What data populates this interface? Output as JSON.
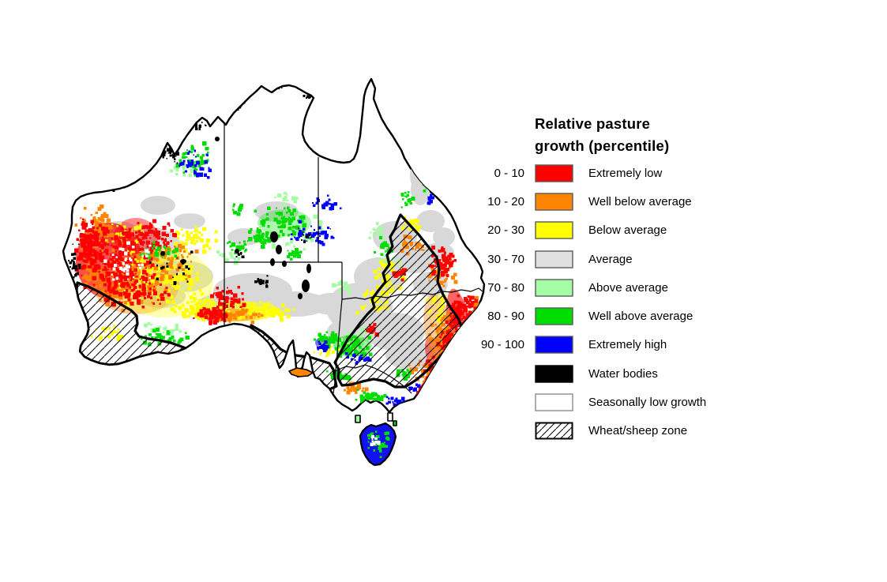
{
  "figure": {
    "background": "#ffffff"
  },
  "legend": {
    "title": "Relative pasture growth (percentile)",
    "items": [
      {
        "range": "0 - 10",
        "label": "Extremely low",
        "color": "#ff0000"
      },
      {
        "range": "10 - 20",
        "label": "Well below average",
        "color": "#ff8400"
      },
      {
        "range": "20 - 30",
        "label": "Below average",
        "color": "#ffff00"
      },
      {
        "range": "30 - 70",
        "label": "Average",
        "color": "#e0e0e0"
      },
      {
        "range": "70 - 80",
        "label": "Above average",
        "color": "#a4fca4"
      },
      {
        "range": "80 - 90",
        "label": "Well above average",
        "color": "#00dd00"
      },
      {
        "range": "90 - 100",
        "label": "Extremely high",
        "color": "#0000ff"
      },
      {
        "range": "",
        "label": "Water bodies",
        "color": "#000000"
      },
      {
        "range": "",
        "label": "Seasonally low growth",
        "color": "#ffffff"
      },
      {
        "range": "",
        "label": "Wheat/sheep zone",
        "color": "#ffffff",
        "pattern": "diagonal-hatch"
      }
    ]
  },
  "map": {
    "name": "Australia relative pasture growth map",
    "palette": {
      "red": "#ff0000",
      "orange": "#ff8400",
      "yellow": "#ffff00",
      "gray": "#d8d8d8",
      "ltgreen": "#a4fca4",
      "green": "#00dd00",
      "blue": "#0000ff",
      "black": "#000000",
      "white": "#ffffff"
    },
    "outline_color": "#000000",
    "state_border_color": "#000000",
    "wheat_sheep_zone_outline": "#000000"
  }
}
